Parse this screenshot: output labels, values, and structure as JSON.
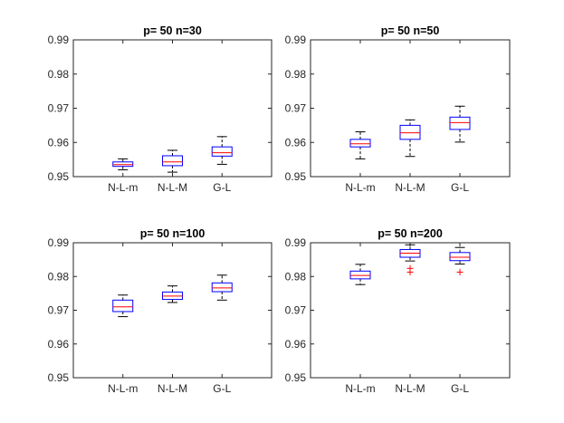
{
  "chart_data": [
    {
      "type": "box",
      "title": "p= 50   n=30",
      "categories": [
        "N-L-m",
        "N-L-M",
        "G-L"
      ],
      "ylim": [
        0.95,
        0.99
      ],
      "yticks": [
        "0.95",
        "0.96",
        "0.97",
        "0.98",
        "0.99"
      ],
      "boxes": [
        {
          "whisker_low": 0.952,
          "q1": 0.953,
          "median": 0.9535,
          "q3": 0.9543,
          "whisker_high": 0.9552,
          "outliers": []
        },
        {
          "whisker_low": 0.9513,
          "q1": 0.9532,
          "median": 0.9543,
          "q3": 0.9561,
          "whisker_high": 0.9577,
          "outliers": []
        },
        {
          "whisker_low": 0.9536,
          "q1": 0.956,
          "median": 0.957,
          "q3": 0.9587,
          "whisker_high": 0.9617,
          "outliers": []
        }
      ]
    },
    {
      "type": "box",
      "title": "p= 50   n=50",
      "categories": [
        "N-L-m",
        "N-L-M",
        "G-L"
      ],
      "ylim": [
        0.95,
        0.99
      ],
      "yticks": [
        "0.95",
        "0.96",
        "0.97",
        "0.98",
        "0.99"
      ],
      "boxes": [
        {
          "whisker_low": 0.9552,
          "q1": 0.9587,
          "median": 0.9596,
          "q3": 0.9609,
          "whisker_high": 0.9631,
          "outliers": []
        },
        {
          "whisker_low": 0.9559,
          "q1": 0.9609,
          "median": 0.9628,
          "q3": 0.965,
          "whisker_high": 0.9666,
          "outliers": []
        },
        {
          "whisker_low": 0.9601,
          "q1": 0.9638,
          "median": 0.9658,
          "q3": 0.9674,
          "whisker_high": 0.9706,
          "outliers": []
        }
      ]
    },
    {
      "type": "box",
      "title": "p= 50   n=100",
      "categories": [
        "N-L-m",
        "N-L-M",
        "G-L"
      ],
      "ylim": [
        0.95,
        0.99
      ],
      "yticks": [
        "0.95",
        "0.96",
        "0.97",
        "0.98",
        "0.99"
      ],
      "boxes": [
        {
          "whisker_low": 0.9681,
          "q1": 0.9696,
          "median": 0.971,
          "q3": 0.973,
          "whisker_high": 0.9745,
          "outliers": []
        },
        {
          "whisker_low": 0.9723,
          "q1": 0.9732,
          "median": 0.9742,
          "q3": 0.9754,
          "whisker_high": 0.9772,
          "outliers": []
        },
        {
          "whisker_low": 0.973,
          "q1": 0.9755,
          "median": 0.9766,
          "q3": 0.9781,
          "whisker_high": 0.9804,
          "outliers": []
        }
      ]
    },
    {
      "type": "box",
      "title": "p= 50   n=200",
      "categories": [
        "N-L-m",
        "N-L-M",
        "G-L"
      ],
      "ylim": [
        0.95,
        0.99
      ],
      "yticks": [
        "0.95",
        "0.96",
        "0.97",
        "0.98",
        "0.99"
      ],
      "boxes": [
        {
          "whisker_low": 0.9776,
          "q1": 0.9793,
          "median": 0.9803,
          "q3": 0.9816,
          "whisker_high": 0.9836,
          "outliers": []
        },
        {
          "whisker_low": 0.9846,
          "q1": 0.9857,
          "median": 0.9869,
          "q3": 0.988,
          "whisker_high": 0.9894,
          "outliers": [
            0.9824,
            0.9813
          ]
        },
        {
          "whisker_low": 0.9837,
          "q1": 0.9847,
          "median": 0.9857,
          "q3": 0.9871,
          "whisker_high": 0.9886,
          "outliers": [
            0.9813
          ]
        }
      ]
    }
  ],
  "colors": {
    "box": "#0000ff",
    "median": "#ff0000",
    "whisker": "#000000",
    "outlier": "#ff0000",
    "axis": "#262626"
  }
}
